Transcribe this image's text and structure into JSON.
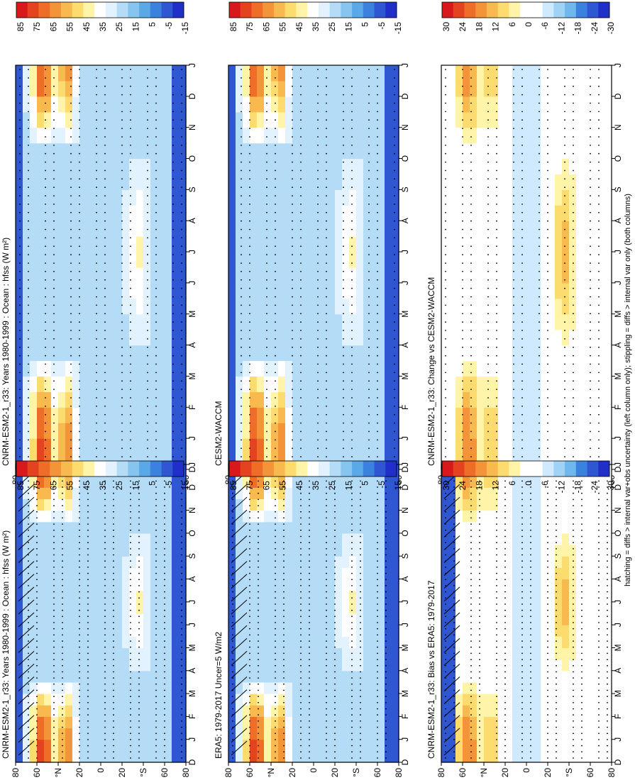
{
  "figure": {
    "footnote": "hatching = diffs > internal var+obs uncertainty (left column only); stippling = diffs > internal var only (both columns)"
  },
  "colors": {
    "ramp_full": [
      "#d7191c",
      "#e4431f",
      "#ee6d27",
      "#f39439",
      "#f8b94f",
      "#fcdb6f",
      "#fff4a8",
      "#ffffff",
      "#e2f3ff",
      "#b4dcf7",
      "#86c5ef",
      "#5aa9e6",
      "#3b82de",
      "#2f57d2",
      "#1f2fc8"
    ],
    "ramp_diff": [
      "#d7191c",
      "#e4431f",
      "#ee6d27",
      "#f39439",
      "#f8b94f",
      "#fcdb6f",
      "#fff4a8",
      "#ffffff",
      "#ffffff",
      "#cfeaff",
      "#9fd2f5",
      "#6fb7ec",
      "#3b82de",
      "#2f57d2",
      "#1f2fc8"
    ]
  },
  "chart_data": [
    {
      "type": "heatmap",
      "title": "CNRM-ESM2-1_r33: Years 1980-1999 : Ocean : hfss (W m²)",
      "months": [
        "D",
        "J",
        "F",
        "M",
        "A",
        "M",
        "J",
        "J",
        "A",
        "S",
        "O",
        "N",
        "D",
        "J"
      ],
      "lat_ticks": [
        "80",
        "60",
        "°N",
        "20",
        "0",
        "20",
        "°S",
        "60",
        "80"
      ],
      "colorbar": [
        "85",
        "75",
        "65",
        "55",
        "45",
        "35",
        "25",
        "15",
        "5",
        "-5",
        "-15"
      ],
      "crange": [
        -20,
        90
      ],
      "hatching": true,
      "stippling": true
    },
    {
      "type": "heatmap",
      "title": "CNRM-ESM2-1_r33: Years 1980-1999 : Ocean : hfss (W m²)",
      "months": [
        "D",
        "J",
        "F",
        "M",
        "A",
        "M",
        "J",
        "J",
        "A",
        "S",
        "O",
        "N",
        "D",
        "J"
      ],
      "lat_ticks": [
        "80",
        "60",
        "°N",
        "20",
        "0",
        "20",
        "°S",
        "60",
        "80"
      ],
      "colorbar": [
        "85",
        "75",
        "65",
        "55",
        "45",
        "35",
        "25",
        "15",
        "5",
        "-5",
        "-15"
      ],
      "crange": [
        -20,
        90
      ],
      "hatching": false,
      "stippling": true
    },
    {
      "type": "heatmap",
      "title": "ERA5: 1979-2017 Uncer=5 W/m2",
      "months": [
        "D",
        "J",
        "F",
        "M",
        "A",
        "M",
        "J",
        "J",
        "A",
        "S",
        "O",
        "N",
        "D",
        "J"
      ],
      "lat_ticks": [
        "80",
        "60",
        "°N",
        "20",
        "0",
        "20",
        "°S",
        "60",
        "80"
      ],
      "colorbar": [
        "85",
        "75",
        "65",
        "55",
        "45",
        "35",
        "25",
        "15",
        "5",
        "-5",
        "-15"
      ],
      "crange": [
        -20,
        90
      ],
      "hatching": true,
      "stippling": true
    },
    {
      "type": "heatmap",
      "title": "CESM2-WACCM",
      "months": [
        "D",
        "J",
        "F",
        "M",
        "A",
        "M",
        "J",
        "J",
        "A",
        "S",
        "O",
        "N",
        "D",
        "J"
      ],
      "lat_ticks": [
        "80",
        "60",
        "°N",
        "20",
        "0",
        "20",
        "°S",
        "60",
        "80"
      ],
      "colorbar": [
        "85",
        "75",
        "65",
        "55",
        "45",
        "35",
        "25",
        "15",
        "5",
        "-5",
        "-15"
      ],
      "crange": [
        -20,
        90
      ],
      "hatching": false,
      "stippling": true
    },
    {
      "type": "heatmap",
      "title": "CNRM-ESM2-1_r33: Bias vs ERA5: 1979-2017",
      "months": [
        "D",
        "J",
        "F",
        "M",
        "A",
        "M",
        "J",
        "J",
        "A",
        "S",
        "O",
        "N",
        "D",
        "J"
      ],
      "lat_ticks": [
        "80",
        "60",
        "°N",
        "20",
        "0",
        "20",
        "°S",
        "60",
        "80"
      ],
      "colorbar": [
        "30",
        "24",
        "18",
        "12",
        "6",
        "0",
        "-6",
        "-12",
        "-18",
        "-24",
        "-30"
      ],
      "crange": [
        -33,
        33
      ],
      "hatching": true,
      "stippling": true
    },
    {
      "type": "heatmap",
      "title": "CNRM-ESM2-1_r33: Change vs CESM2-WACCM",
      "months": [
        "D",
        "J",
        "F",
        "M",
        "A",
        "M",
        "J",
        "J",
        "A",
        "S",
        "O",
        "N",
        "D",
        "J"
      ],
      "lat_ticks": [
        "80",
        "60",
        "°N",
        "20",
        "0",
        "20",
        "°S",
        "60",
        "80"
      ],
      "colorbar": [
        "30",
        "24",
        "18",
        "12",
        "6",
        "0",
        "-6",
        "-12",
        "-18",
        "-24",
        "-30"
      ],
      "crange": [
        -33,
        33
      ],
      "hatching": false,
      "stippling": true
    }
  ]
}
